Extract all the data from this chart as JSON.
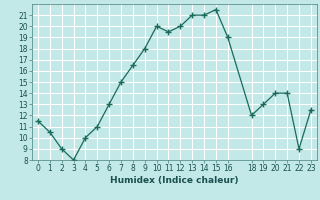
{
  "x": [
    0,
    1,
    2,
    3,
    4,
    5,
    6,
    7,
    8,
    9,
    10,
    11,
    12,
    13,
    14,
    15,
    16,
    18,
    19,
    20,
    21,
    22,
    23
  ],
  "y": [
    11.5,
    10.5,
    9.0,
    8.0,
    10.0,
    11.0,
    13.0,
    15.0,
    16.5,
    18.0,
    20.0,
    19.5,
    20.0,
    21.0,
    21.0,
    21.5,
    19.0,
    12.0,
    13.0,
    14.0,
    14.0,
    9.0,
    12.5
  ],
  "line_color": "#1a6b5a",
  "marker": "+",
  "marker_size": 4,
  "bg_color": "#c2e8e8",
  "grid_color": "#ffffff",
  "xlabel": "Humidex (Indice chaleur)",
  "xlim": [
    -0.5,
    23.5
  ],
  "ylim": [
    8,
    22
  ],
  "xticks": [
    0,
    1,
    2,
    3,
    4,
    5,
    6,
    7,
    8,
    9,
    10,
    11,
    12,
    13,
    14,
    15,
    16,
    18,
    19,
    20,
    21,
    22,
    23
  ],
  "xtick_labels": [
    "0",
    "1",
    "2",
    "3",
    "4",
    "5",
    "6",
    "7",
    "8",
    "9",
    "10",
    "11",
    "12",
    "13",
    "14",
    "15",
    "16",
    "18",
    "19",
    "20",
    "21",
    "22",
    "23"
  ],
  "yticks": [
    8,
    9,
    10,
    11,
    12,
    13,
    14,
    15,
    16,
    17,
    18,
    19,
    20,
    21
  ],
  "tick_fontsize": 5.5,
  "xlabel_fontsize": 6.5,
  "linewidth": 0.9
}
